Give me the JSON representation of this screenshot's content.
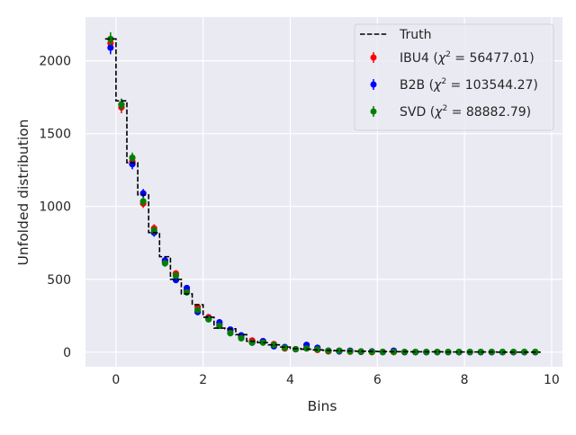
{
  "chart_data": {
    "type": "scatter",
    "xlabel": "Bins",
    "ylabel": "Unfolded distribution",
    "xlim": [
      -0.7,
      10.25
    ],
    "ylim": [
      -100,
      2300
    ],
    "xticks": [
      0,
      2,
      4,
      6,
      8,
      10
    ],
    "yticks": [
      0,
      500,
      1000,
      1500,
      2000
    ],
    "grid": true,
    "legend_position": "top-right",
    "colors": {
      "background": "#eaeaf2",
      "grid": "#ffffff",
      "truth": "#000000",
      "ibu4": "#ff0000",
      "b2b": "#0000ff",
      "svd": "#008000"
    },
    "truth": {
      "name": "Truth",
      "edges": [
        -0.25,
        0,
        0.25,
        0.5,
        0.75,
        1,
        1.25,
        1.5,
        1.75,
        2,
        2.25,
        2.5,
        2.75,
        3,
        3.25,
        3.5,
        3.75,
        4,
        4.25,
        4.5,
        4.75,
        5,
        5.25,
        5.5,
        5.75,
        6,
        6.25,
        6.5,
        6.75,
        7,
        7.25,
        7.5,
        7.75,
        8,
        8.25,
        8.5,
        8.75,
        9,
        9.25,
        9.5,
        9.75
      ],
      "values": [
        2150,
        1725,
        1300,
        1080,
        820,
        655,
        500,
        400,
        325,
        240,
        165,
        160,
        120,
        75,
        65,
        50,
        35,
        25,
        20,
        15,
        12,
        10,
        8,
        6,
        5,
        4,
        3,
        3,
        2,
        2,
        2,
        1,
        1,
        1,
        1,
        1,
        0,
        0,
        0,
        0
      ]
    },
    "x": [
      -0.125,
      0.125,
      0.375,
      0.625,
      0.875,
      1.125,
      1.375,
      1.625,
      1.875,
      2.125,
      2.375,
      2.625,
      2.875,
      3.125,
      3.375,
      3.625,
      3.875,
      4.125,
      4.375,
      4.625,
      4.875,
      5.125,
      5.375,
      5.625,
      5.875,
      6.125,
      6.375,
      6.625,
      6.875,
      7.125,
      7.375,
      7.625,
      7.875,
      8.125,
      8.375,
      8.625,
      8.875,
      9.125,
      9.375,
      9.625
    ],
    "series": [
      {
        "name": "IBU4 ($\\chi^2 = 56477.01$)",
        "label_prefix": "IBU4 (",
        "label_chi2": "56477.01",
        "values": [
          2120,
          1680,
          1310,
          1020,
          850,
          620,
          540,
          420,
          310,
          240,
          190,
          150,
          100,
          80,
          75,
          55,
          25,
          20,
          30,
          15,
          5,
          10,
          3,
          2,
          0,
          2,
          0,
          0,
          0,
          0,
          0,
          0,
          0,
          0,
          0,
          0,
          0,
          0,
          0,
          0
        ],
        "errors": [
          45,
          40,
          35,
          30,
          28,
          24,
          22,
          20,
          18,
          15,
          13,
          12,
          10,
          9,
          8,
          7,
          6,
          5,
          5,
          4,
          3,
          3,
          3,
          2,
          2,
          2,
          2,
          2,
          2,
          2,
          2,
          2,
          2,
          2,
          2,
          2,
          2,
          2,
          2,
          2
        ]
      },
      {
        "name": "B2B ($\\chi^2 = 103544.27$)",
        "label_prefix": "B2B (",
        "label_chi2": "103544.27",
        "values": [
          2090,
          1700,
          1290,
          1090,
          820,
          630,
          495,
          440,
          275,
          230,
          205,
          155,
          115,
          65,
          75,
          40,
          35,
          20,
          50,
          30,
          10,
          5,
          10,
          3,
          5,
          0,
          10,
          0,
          0,
          0,
          0,
          0,
          0,
          0,
          0,
          0,
          0,
          0,
          0,
          0
        ],
        "errors": [
          45,
          40,
          35,
          30,
          28,
          24,
          22,
          20,
          18,
          15,
          13,
          12,
          10,
          9,
          8,
          7,
          6,
          5,
          5,
          4,
          3,
          3,
          3,
          2,
          2,
          2,
          2,
          2,
          2,
          2,
          2,
          2,
          2,
          2,
          2,
          2,
          2,
          2,
          2,
          2
        ]
      },
      {
        "name": "SVD ($\\chi^2 = 88882.79$)",
        "label_prefix": "SVD (",
        "label_chi2": "88882.79",
        "values": [
          2150,
          1700,
          1335,
          1035,
          835,
          610,
          525,
          410,
          290,
          225,
          180,
          130,
          95,
          65,
          65,
          50,
          30,
          20,
          25,
          20,
          10,
          10,
          5,
          5,
          2,
          2,
          2,
          2,
          2,
          2,
          2,
          2,
          2,
          2,
          2,
          2,
          2,
          2,
          2,
          2
        ],
        "errors": [
          45,
          40,
          35,
          30,
          28,
          24,
          22,
          20,
          18,
          15,
          13,
          12,
          10,
          9,
          8,
          7,
          6,
          5,
          5,
          4,
          3,
          3,
          3,
          2,
          2,
          2,
          2,
          2,
          2,
          2,
          2,
          2,
          2,
          2,
          2,
          2,
          2,
          2,
          2,
          2
        ]
      }
    ]
  }
}
